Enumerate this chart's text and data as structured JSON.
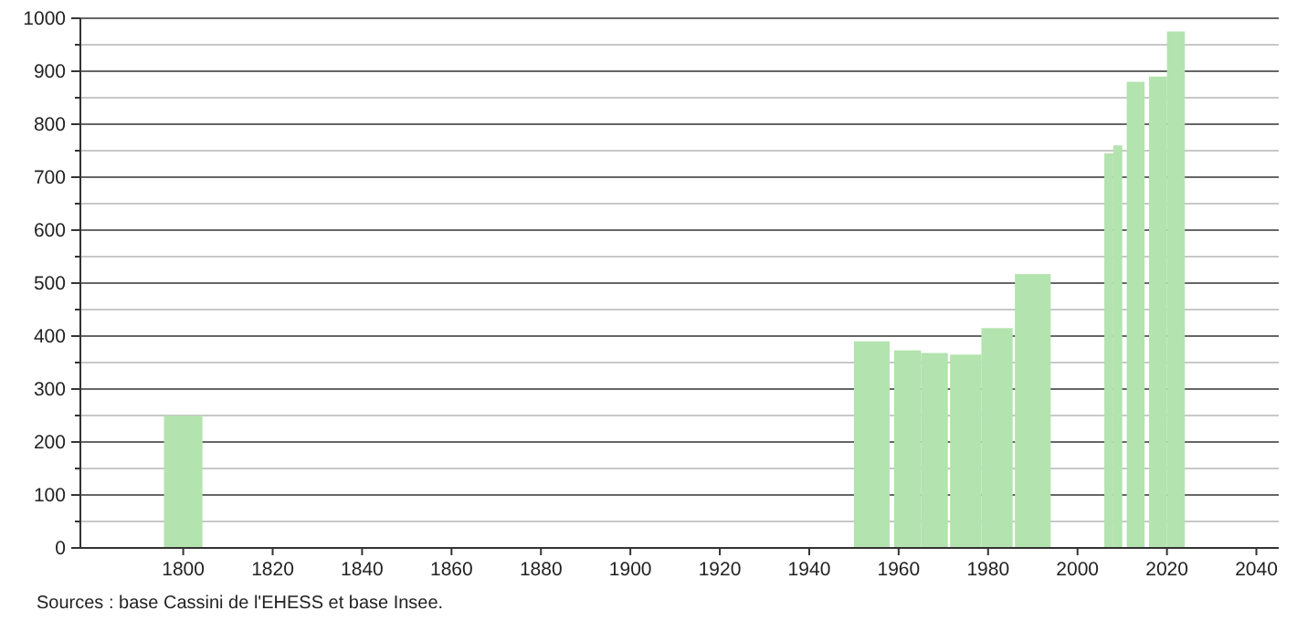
{
  "chart_data": {
    "type": "bar",
    "x": [
      1800,
      1954,
      1962,
      1968,
      1975,
      1982,
      1990,
      2007,
      2009,
      2013,
      2018,
      2022
    ],
    "values": [
      250,
      390,
      373,
      368,
      365,
      415,
      517,
      745,
      760,
      880,
      890,
      975
    ],
    "color": "#b3e3ae",
    "xlim": [
      1777,
      2045
    ],
    "xticks": [
      1800,
      1820,
      1840,
      1860,
      1880,
      1900,
      1920,
      1940,
      1960,
      1980,
      2000,
      2020,
      2040
    ],
    "ylim": [
      0,
      1000
    ],
    "yticks": [
      0,
      {
        "value": 50,
        "label": null
      },
      100,
      {
        "value": 150,
        "label": null
      },
      200,
      {
        "value": 250,
        "label": null
      },
      300,
      {
        "value": 350,
        "label": null
      },
      400,
      {
        "value": 450,
        "label": null
      },
      500,
      {
        "value": 550,
        "label": null
      },
      600,
      {
        "value": 650,
        "label": null
      },
      700,
      {
        "value": 750,
        "label": null
      },
      800,
      {
        "value": 850,
        "label": null
      },
      900,
      {
        "value": 950,
        "label": null
      },
      1000
    ],
    "grid": true,
    "annotations": [
      "Sources : base Cassini de l'EHESS et base Insee."
    ]
  }
}
